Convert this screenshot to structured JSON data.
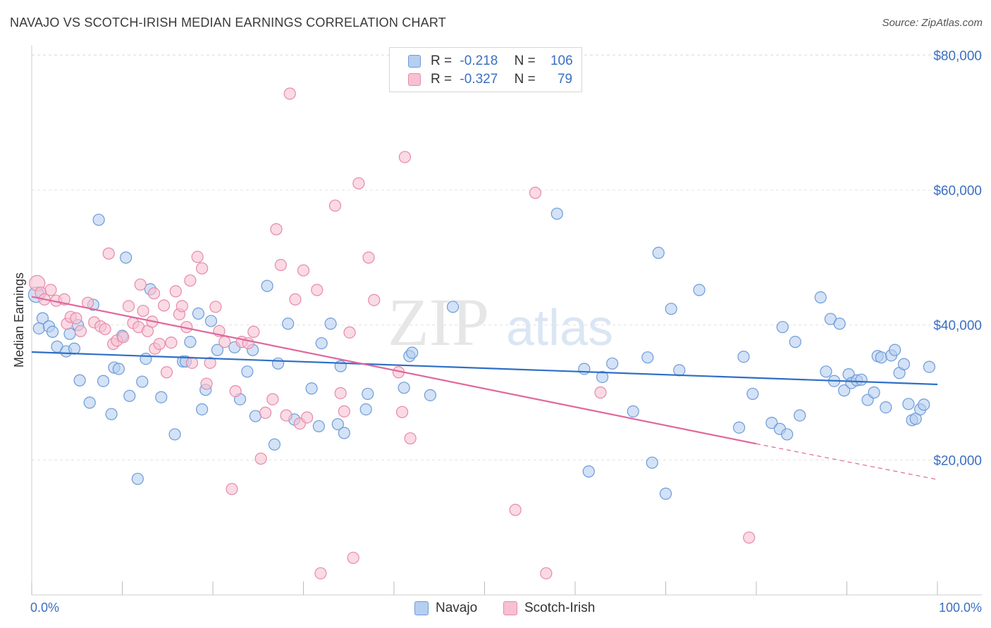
{
  "header": {
    "title": "NAVAJO VS SCOTCH-IRISH MEDIAN EARNINGS CORRELATION CHART",
    "source": "Source: ZipAtlas.com"
  },
  "legend": {
    "navajo": {
      "r_label": "R =",
      "r_value": "-0.218",
      "n_label": "N =",
      "n_value": "106"
    },
    "scotch_irish": {
      "r_label": "R =",
      "r_value": "-0.327",
      "n_label": "N =",
      "n_value": "79"
    }
  },
  "colors": {
    "navajo_fill": "#b5cff0",
    "navajo_stroke": "#6d9bd8",
    "navajo_line": "#2f6fc6",
    "scotch_fill": "#f7c1d2",
    "scotch_stroke": "#e68aa8",
    "scotch_line": "#e0679a",
    "axis_label": "#3a6fc4",
    "grid": "#e3e3e3"
  },
  "chart_data": {
    "type": "scatter",
    "ylabel": "Median Earnings",
    "x_tick_labels": [
      "0.0%",
      "100.0%"
    ],
    "y_tick_labels": [
      "$20,000",
      "$40,000",
      "$60,000",
      "$80,000"
    ],
    "y_ticks": [
      20000,
      40000,
      60000,
      80000
    ],
    "xlim": [
      0,
      100
    ],
    "ylim": [
      0,
      81500
    ],
    "grid": true,
    "watermark": "ZIPatlas",
    "series": [
      {
        "name": "Navajo",
        "trend": {
          "x": [
            0,
            100
          ],
          "y": [
            36000,
            31200
          ],
          "dashed_after": null
        },
        "points": [
          [
            0.5,
            44500
          ],
          [
            1.2,
            41000
          ],
          [
            0.8,
            39500
          ],
          [
            1.9,
            39800
          ],
          [
            2.3,
            39000
          ],
          [
            2.8,
            36800
          ],
          [
            3.8,
            36100
          ],
          [
            4.2,
            38700
          ],
          [
            4.7,
            36500
          ],
          [
            5.1,
            40000
          ],
          [
            5.3,
            31800
          ],
          [
            6.4,
            28500
          ],
          [
            6.8,
            43000
          ],
          [
            7.4,
            55600
          ],
          [
            7.9,
            31700
          ],
          [
            8.8,
            26800
          ],
          [
            9.1,
            33700
          ],
          [
            9.6,
            33500
          ],
          [
            10.0,
            38400
          ],
          [
            10.4,
            50000
          ],
          [
            10.8,
            29500
          ],
          [
            11.7,
            17200
          ],
          [
            12.2,
            31600
          ],
          [
            12.6,
            35000
          ],
          [
            13.1,
            45300
          ],
          [
            14.3,
            29300
          ],
          [
            15.8,
            23800
          ],
          [
            16.7,
            34600
          ],
          [
            17.0,
            34600
          ],
          [
            17.5,
            37500
          ],
          [
            18.4,
            41700
          ],
          [
            18.8,
            27500
          ],
          [
            19.2,
            30400
          ],
          [
            19.8,
            40600
          ],
          [
            20.5,
            36300
          ],
          [
            22.4,
            36700
          ],
          [
            23.0,
            29000
          ],
          [
            23.8,
            33100
          ],
          [
            24.4,
            36300
          ],
          [
            24.7,
            26500
          ],
          [
            26.0,
            45800
          ],
          [
            26.8,
            22300
          ],
          [
            27.2,
            34300
          ],
          [
            28.3,
            40200
          ],
          [
            29.0,
            26000
          ],
          [
            30.9,
            30600
          ],
          [
            31.7,
            25000
          ],
          [
            32.0,
            37300
          ],
          [
            33.0,
            40200
          ],
          [
            33.8,
            25300
          ],
          [
            34.1,
            33900
          ],
          [
            34.5,
            24000
          ],
          [
            36.9,
            27500
          ],
          [
            37.1,
            29800
          ],
          [
            41.1,
            30700
          ],
          [
            41.7,
            35400
          ],
          [
            42.0,
            35900
          ],
          [
            44.0,
            29600
          ],
          [
            46.5,
            42700
          ],
          [
            58.0,
            56500
          ],
          [
            61.0,
            33500
          ],
          [
            61.5,
            18300
          ],
          [
            63.0,
            32300
          ],
          [
            64.1,
            34300
          ],
          [
            66.4,
            27200
          ],
          [
            68.0,
            35200
          ],
          [
            68.5,
            19600
          ],
          [
            69.2,
            50700
          ],
          [
            70.0,
            15000
          ],
          [
            70.6,
            42400
          ],
          [
            71.5,
            33300
          ],
          [
            73.7,
            45200
          ],
          [
            78.1,
            24800
          ],
          [
            78.6,
            35300
          ],
          [
            79.6,
            29800
          ],
          [
            81.7,
            25500
          ],
          [
            82.6,
            24600
          ],
          [
            82.9,
            39700
          ],
          [
            83.4,
            23800
          ],
          [
            84.3,
            37500
          ],
          [
            84.8,
            26600
          ],
          [
            87.1,
            44100
          ],
          [
            87.7,
            33100
          ],
          [
            88.2,
            40900
          ],
          [
            88.6,
            31700
          ],
          [
            89.2,
            40200
          ],
          [
            89.7,
            30300
          ],
          [
            90.2,
            32700
          ],
          [
            90.5,
            31400
          ],
          [
            91.1,
            31800
          ],
          [
            91.6,
            31900
          ],
          [
            92.3,
            28900
          ],
          [
            93.0,
            30000
          ],
          [
            93.4,
            35400
          ],
          [
            93.8,
            35200
          ],
          [
            94.3,
            27800
          ],
          [
            94.9,
            35500
          ],
          [
            95.3,
            36300
          ],
          [
            95.8,
            32900
          ],
          [
            96.3,
            34200
          ],
          [
            96.8,
            28300
          ],
          [
            97.2,
            25900
          ],
          [
            97.6,
            26100
          ],
          [
            98.1,
            27500
          ],
          [
            98.5,
            28200
          ],
          [
            99.1,
            33800
          ]
        ]
      },
      {
        "name": "Scotch-Irish",
        "trend": {
          "x": [
            0,
            80,
            100
          ],
          "y": [
            44200,
            22400,
            17100
          ],
          "dashed_after": 80
        },
        "points": [
          [
            0.6,
            46200
          ],
          [
            1.0,
            44800
          ],
          [
            1.4,
            43800
          ],
          [
            2.1,
            45200
          ],
          [
            2.7,
            43600
          ],
          [
            3.6,
            43800
          ],
          [
            3.9,
            40200
          ],
          [
            4.3,
            41200
          ],
          [
            4.9,
            41000
          ],
          [
            5.4,
            39100
          ],
          [
            6.2,
            43300
          ],
          [
            6.9,
            40400
          ],
          [
            7.6,
            39800
          ],
          [
            8.1,
            39400
          ],
          [
            8.5,
            50600
          ],
          [
            9.0,
            37200
          ],
          [
            9.4,
            37700
          ],
          [
            10.1,
            38200
          ],
          [
            10.7,
            42800
          ],
          [
            11.2,
            40300
          ],
          [
            11.8,
            39700
          ],
          [
            12.3,
            42100
          ],
          [
            12.8,
            39100
          ],
          [
            13.3,
            40500
          ],
          [
            13.6,
            36500
          ],
          [
            14.1,
            37200
          ],
          [
            14.6,
            42900
          ],
          [
            14.9,
            33000
          ],
          [
            15.4,
            37400
          ],
          [
            15.9,
            45000
          ],
          [
            16.3,
            41600
          ],
          [
            16.6,
            42800
          ],
          [
            17.1,
            39700
          ],
          [
            17.7,
            34400
          ],
          [
            18.3,
            50100
          ],
          [
            18.8,
            48400
          ],
          [
            19.3,
            31300
          ],
          [
            19.7,
            34400
          ],
          [
            20.3,
            42700
          ],
          [
            20.7,
            39100
          ],
          [
            21.3,
            37500
          ],
          [
            22.1,
            15700
          ],
          [
            22.5,
            30200
          ],
          [
            23.2,
            37500
          ],
          [
            23.9,
            37300
          ],
          [
            24.5,
            39000
          ],
          [
            25.3,
            20200
          ],
          [
            25.8,
            27000
          ],
          [
            26.6,
            29000
          ],
          [
            27.0,
            54200
          ],
          [
            27.5,
            48900
          ],
          [
            28.1,
            26600
          ],
          [
            28.5,
            74300
          ],
          [
            29.1,
            43800
          ],
          [
            29.6,
            25400
          ],
          [
            30.0,
            48100
          ],
          [
            30.4,
            26300
          ],
          [
            31.5,
            45200
          ],
          [
            31.9,
            3200
          ],
          [
            33.5,
            57700
          ],
          [
            34.1,
            29900
          ],
          [
            34.5,
            27200
          ],
          [
            35.1,
            38900
          ],
          [
            35.5,
            5500
          ],
          [
            36.1,
            61000
          ],
          [
            37.2,
            50000
          ],
          [
            37.8,
            43700
          ],
          [
            40.5,
            33000
          ],
          [
            40.9,
            27100
          ],
          [
            41.2,
            64900
          ],
          [
            41.8,
            23200
          ],
          [
            53.4,
            12600
          ],
          [
            55.6,
            59600
          ],
          [
            56.8,
            3200
          ],
          [
            62.8,
            30000
          ],
          [
            79.2,
            8500
          ],
          [
            17.5,
            46600
          ],
          [
            12.0,
            46000
          ],
          [
            13.5,
            44700
          ]
        ]
      }
    ]
  }
}
